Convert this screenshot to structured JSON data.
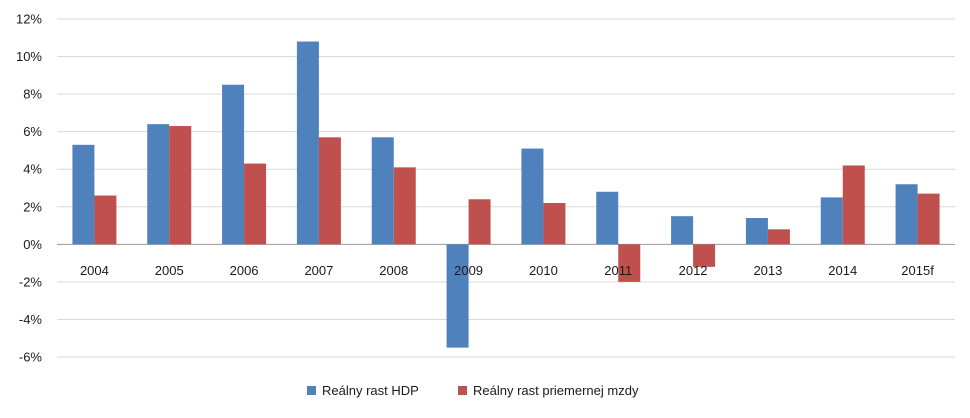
{
  "chart_data": {
    "type": "bar",
    "categories": [
      "2004",
      "2005",
      "2006",
      "2007",
      "2008",
      "2009",
      "2010",
      "2011",
      "2012",
      "2013",
      "2014",
      "2015f"
    ],
    "series": [
      {
        "name": "Reálny rast HDP",
        "color": "#4f81bd",
        "values": [
          5.3,
          6.4,
          8.5,
          10.8,
          5.7,
          -5.5,
          5.1,
          2.8,
          1.5,
          1.4,
          2.5,
          3.2
        ]
      },
      {
        "name": "Reálny rast priemernej mzdy",
        "color": "#c0504d",
        "values": [
          2.6,
          6.3,
          4.3,
          5.7,
          4.1,
          2.4,
          2.2,
          -2.0,
          -1.2,
          0.8,
          4.2,
          2.7
        ]
      }
    ],
    "ylim": [
      -6,
      12
    ],
    "yticks": [
      "-6%",
      "-4%",
      "-2%",
      "0%",
      "2%",
      "4%",
      "6%",
      "8%",
      "10%",
      "12%"
    ],
    "grid": true,
    "legend_position": "bottom"
  }
}
